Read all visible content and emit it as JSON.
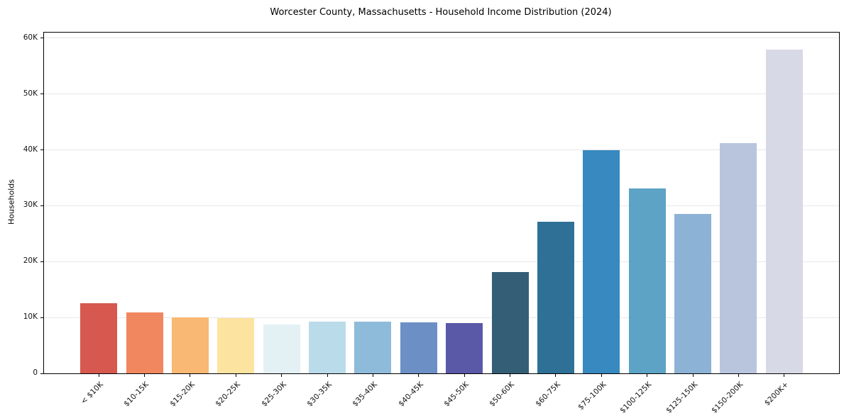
{
  "chart_data": {
    "type": "bar",
    "title": "Worcester County, Massachusetts - Household Income Distribution (2024)",
    "xlabel": "",
    "ylabel": "Households",
    "categories": [
      "< $10K",
      "$10-15K",
      "$15-20K",
      "$20-25K",
      "$25-30K",
      "$30-35K",
      "$35-40K",
      "$40-45K",
      "$45-50K",
      "$50-60K",
      "$60-75K",
      "$75-100K",
      "$100-125K",
      "$125-150K",
      "$150-200K",
      "$200K+"
    ],
    "values": [
      12500,
      10900,
      10000,
      9900,
      8700,
      9300,
      9200,
      9100,
      9000,
      18100,
      27100,
      39900,
      33100,
      28500,
      41200,
      57900
    ],
    "bar_colors": [
      "#d6584e",
      "#f0875f",
      "#f9b873",
      "#fde3a0",
      "#e3f1f4",
      "#badbea",
      "#8fbbdb",
      "#6c90c6",
      "#5a59a8",
      "#345e75",
      "#2f7196",
      "#3789c0",
      "#5ca3c6",
      "#8cb2d5",
      "#b8c5dd",
      "#d8d9e7"
    ],
    "ylim": [
      0,
      61000
    ],
    "yticks": [
      0,
      10000,
      20000,
      30000,
      40000,
      50000,
      60000
    ],
    "ytick_labels": [
      "0",
      "10K",
      "20K",
      "30K",
      "40K",
      "50K",
      "60K"
    ],
    "grid": "horizontal-only",
    "gridline_color": "#e8e8e8",
    "frame": "full-box",
    "legend": "none",
    "x_label_rotation_deg": 45
  }
}
